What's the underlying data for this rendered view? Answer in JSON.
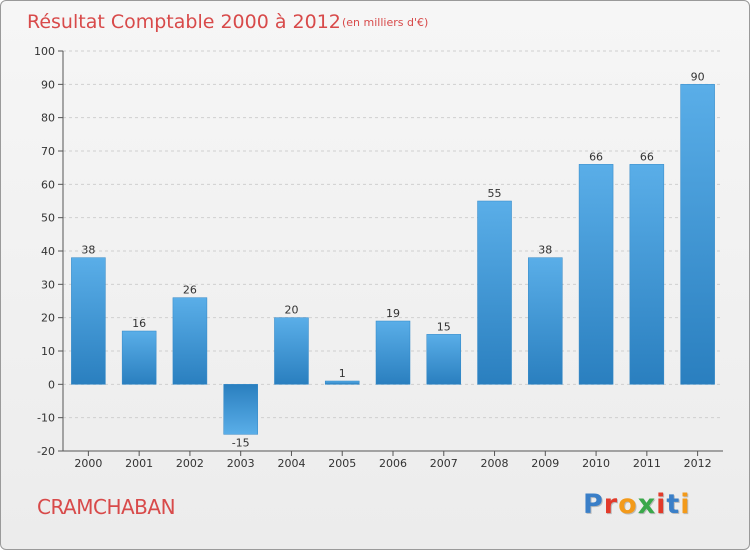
{
  "chart_data": {
    "type": "bar",
    "title": "Résultat Comptable 2000 à 2012",
    "subtitle": "(en milliers d'€)",
    "categories": [
      "2000",
      "2001",
      "2002",
      "2003",
      "2004",
      "2005",
      "2006",
      "2007",
      "2008",
      "2009",
      "2010",
      "2011",
      "2012"
    ],
    "values": [
      38,
      16,
      26,
      -15,
      20,
      1,
      19,
      15,
      55,
      38,
      66,
      66,
      90
    ],
    "value_labels": [
      "38",
      "16",
      "26",
      "-15",
      "20",
      "1",
      "19",
      "15",
      "55",
      "38",
      "66",
      "66",
      "90"
    ],
    "yticks": [
      -20,
      -10,
      0,
      10,
      20,
      30,
      40,
      50,
      60,
      70,
      80,
      90,
      100
    ],
    "ylim": [
      -20,
      100
    ],
    "grid": true,
    "colors": {
      "bar_light": "#5aaee8",
      "bar_dark": "#2a7fbf",
      "grid": "#cfcfcf",
      "title": "#d84a4a"
    }
  },
  "footer": {
    "city": "CRAMCHABAN",
    "logo_text": "Proxiti",
    "logo_colors": [
      "#3a7fc8",
      "#e23a2a",
      "#f39a1a",
      "#3aa84a",
      "#e23a2a",
      "#3a7fc8",
      "#f39a1a"
    ]
  }
}
